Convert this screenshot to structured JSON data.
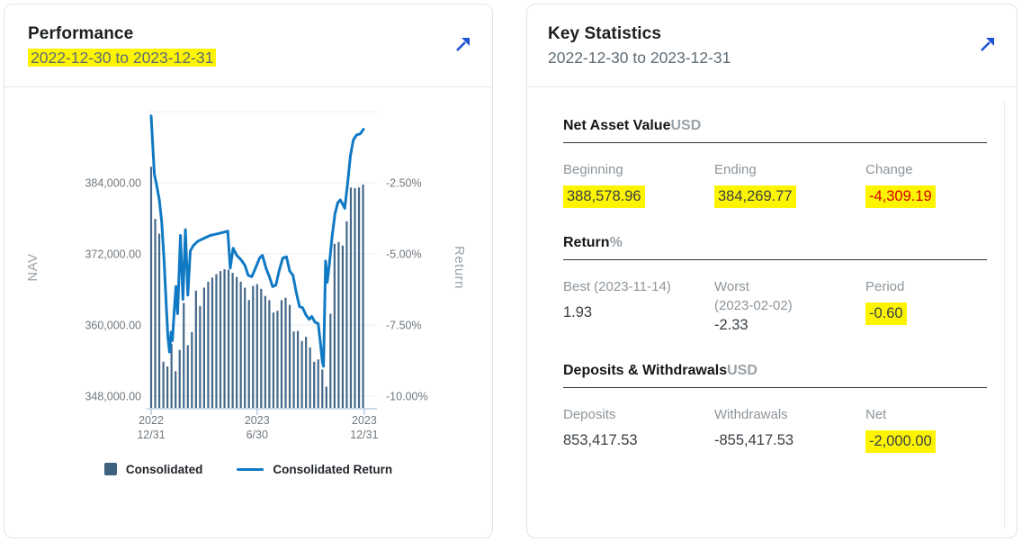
{
  "performance_card": {
    "title": "Performance",
    "date_range": "2022-12-30 to 2023-12-31",
    "expand_icon": "arrow-up-right",
    "highlight_color": "#fdf402"
  },
  "key_statistics_card": {
    "title": "Key Statistics",
    "date_range": "2022-12-30 to 2023-12-31",
    "expand_icon": "arrow-up-right",
    "sections": [
      {
        "title": "Net Asset Value",
        "unit": "USD",
        "items": [
          {
            "label": "Beginning",
            "value": "388,578.96",
            "highlight": true
          },
          {
            "label": "Ending",
            "value": "384,269.77",
            "highlight": true
          },
          {
            "label": "Change",
            "value": "-4,309.19",
            "highlight": true,
            "negative": true
          }
        ]
      },
      {
        "title": "Return",
        "unit": "%",
        "items": [
          {
            "label": "Best (2023-11-14)",
            "value": "1.93"
          },
          {
            "label": "Worst",
            "sublabel": "(2023-02-02)",
            "value": "-2.33"
          },
          {
            "label": "Period",
            "value": "-0.60",
            "highlight": true
          }
        ]
      },
      {
        "title": "Deposits & Withdrawals",
        "unit": "USD",
        "items": [
          {
            "label": "Deposits",
            "value": "853,417.53"
          },
          {
            "label": "Withdrawals",
            "value": "-855,417.53"
          },
          {
            "label": "Net",
            "value": "-2,000.00",
            "highlight": true
          }
        ]
      }
    ]
  },
  "chart_data": {
    "type": "bar",
    "title": "Performance 2022-12-30 to 2023-12-31",
    "left_axis": {
      "title": "NAV",
      "ticks": [
        "384,000.00",
        "372,000.00",
        "360,000.00",
        "348,000.00"
      ],
      "tick_values": [
        384000,
        372000,
        360000,
        348000
      ],
      "range": [
        346000,
        396000
      ]
    },
    "right_axis": {
      "title": "Return",
      "ticks": [
        "-2.50%",
        "-5.00%",
        "-7.50%",
        "-10.00%"
      ],
      "tick_values": [
        -2.5,
        -5.0,
        -7.5,
        -10.0
      ],
      "range": [
        -10.4,
        0.0
      ]
    },
    "x_axis": {
      "labels": [
        [
          "2022",
          "12/31"
        ],
        [
          "2023",
          "6/30"
        ],
        [
          "2023",
          "12/31"
        ]
      ],
      "label_weeks": [
        0,
        26,
        52.3
      ],
      "unit": "weeks"
    },
    "grid": true,
    "legend_position": "bottom",
    "series": [
      {
        "name": "Consolidated",
        "type": "bar",
        "axis": "left",
        "color": "#44688a",
        "values": [
          386700,
          377900,
          375400,
          353800,
          353000,
          356800,
          352200,
          355800,
          363700,
          356600,
          358800,
          365800,
          363200,
          366300,
          367300,
          368000,
          368600,
          369100,
          369400,
          369300,
          368800,
          368100,
          367300,
          366300,
          364200,
          366600,
          366900,
          366100,
          364900,
          364200,
          362100,
          362400,
          364200,
          364600,
          363400,
          358900,
          359000,
          357300,
          358000,
          356200,
          353800,
          354200,
          352500,
          349600,
          361900,
          373700,
          374000,
          373400,
          377500,
          383200,
          383100,
          383200,
          383700
        ]
      },
      {
        "name": "Consolidated Return",
        "type": "line",
        "axis": "right",
        "color": "#0f79c4",
        "points": [
          [
            0,
            -0.15
          ],
          [
            0.4,
            -1.2
          ],
          [
            0.8,
            -2.2
          ],
          [
            1.3,
            -2.55
          ],
          [
            2,
            -3.1
          ],
          [
            2.6,
            -3.9
          ],
          [
            3.2,
            -5.3
          ],
          [
            3.7,
            -6.8
          ],
          [
            4.1,
            -7.9
          ],
          [
            4.5,
            -8.45
          ],
          [
            4.9,
            -7.75
          ],
          [
            5.2,
            -8.05
          ],
          [
            5.8,
            -6.7
          ],
          [
            6.1,
            -6.15
          ],
          [
            6.5,
            -7.1
          ],
          [
            7.2,
            -4.35
          ],
          [
            7.8,
            -6.6
          ],
          [
            8.4,
            -4.15
          ],
          [
            9.0,
            -6.45
          ],
          [
            9.6,
            -4.9
          ],
          [
            10.4,
            -4.7
          ],
          [
            11.5,
            -4.55
          ],
          [
            13,
            -4.45
          ],
          [
            14.5,
            -4.35
          ],
          [
            16,
            -4.3
          ],
          [
            17.5,
            -4.25
          ],
          [
            18.8,
            -4.2
          ],
          [
            19.4,
            -5.5
          ],
          [
            20.1,
            -4.8
          ],
          [
            21,
            -5.05
          ],
          [
            22,
            -5.2
          ],
          [
            23,
            -5.4
          ],
          [
            23.8,
            -5.75
          ],
          [
            24.7,
            -5.8
          ],
          [
            25.6,
            -5.5
          ],
          [
            26.6,
            -5.15
          ],
          [
            27.3,
            -5.05
          ],
          [
            28.2,
            -5.5
          ],
          [
            29,
            -5.8
          ],
          [
            29.8,
            -6.15
          ],
          [
            30.6,
            -6.1
          ],
          [
            31.4,
            -5.6
          ],
          [
            32.3,
            -5.15
          ],
          [
            33.2,
            -5.1
          ],
          [
            34,
            -5.6
          ],
          [
            34.8,
            -5.75
          ],
          [
            35.6,
            -6.35
          ],
          [
            36.4,
            -6.85
          ],
          [
            37.2,
            -6.9
          ],
          [
            38,
            -7.15
          ],
          [
            38.8,
            -7.3
          ],
          [
            39.4,
            -7.2
          ],
          [
            40.2,
            -7.4
          ],
          [
            41,
            -7.45
          ],
          [
            41.6,
            -8.2
          ],
          [
            42,
            -8.8
          ],
          [
            42.3,
            -8.95
          ],
          [
            42.8,
            -5.25
          ],
          [
            43.2,
            -6.0
          ],
          [
            43.7,
            -5.4
          ],
          [
            44.4,
            -4.4
          ],
          [
            45.1,
            -3.6
          ],
          [
            45.8,
            -3.2
          ],
          [
            46.4,
            -3.1
          ],
          [
            47,
            -3.25
          ],
          [
            47.5,
            -3.4
          ],
          [
            48.2,
            -2.55
          ],
          [
            48.9,
            -1.55
          ],
          [
            49.6,
            -1.0
          ],
          [
            50.4,
            -0.82
          ],
          [
            51.3,
            -0.78
          ],
          [
            52.1,
            -0.62
          ]
        ]
      }
    ]
  }
}
